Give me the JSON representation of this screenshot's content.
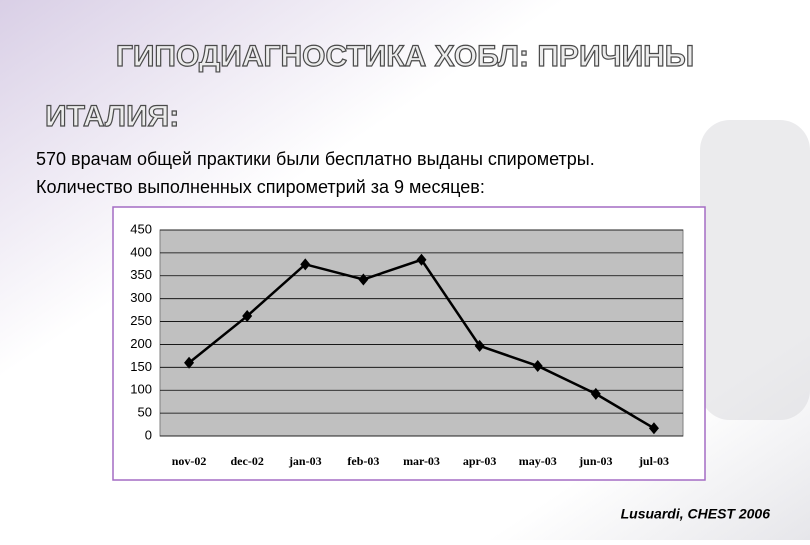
{
  "chart_data": {
    "type": "line",
    "title": "ГИПОДИАГНОСТИКА ХОБЛ: ПРИЧИНЫ",
    "subtitle": "ИТАЛИЯ:",
    "text": [
      "570 врачам общей практики были бесплатно выданы спирометры.",
      "Количество выполненных спирометрий за 9 месяцев:"
    ],
    "source": "Lusuardi, CHEST 2006",
    "categories": [
      "nov-02",
      "dec-02",
      "jan-03",
      "feb-03",
      "mar-03",
      "apr-03",
      "may-03",
      "jun-03",
      "jul-03"
    ],
    "values": [
      160,
      262,
      375,
      342,
      385,
      197,
      153,
      92,
      17
    ],
    "color": "#000000",
    "ylim": [
      0,
      450
    ],
    "yticks": [
      0,
      50,
      100,
      150,
      200,
      250,
      300,
      350,
      400,
      450
    ],
    "grid": true
  }
}
